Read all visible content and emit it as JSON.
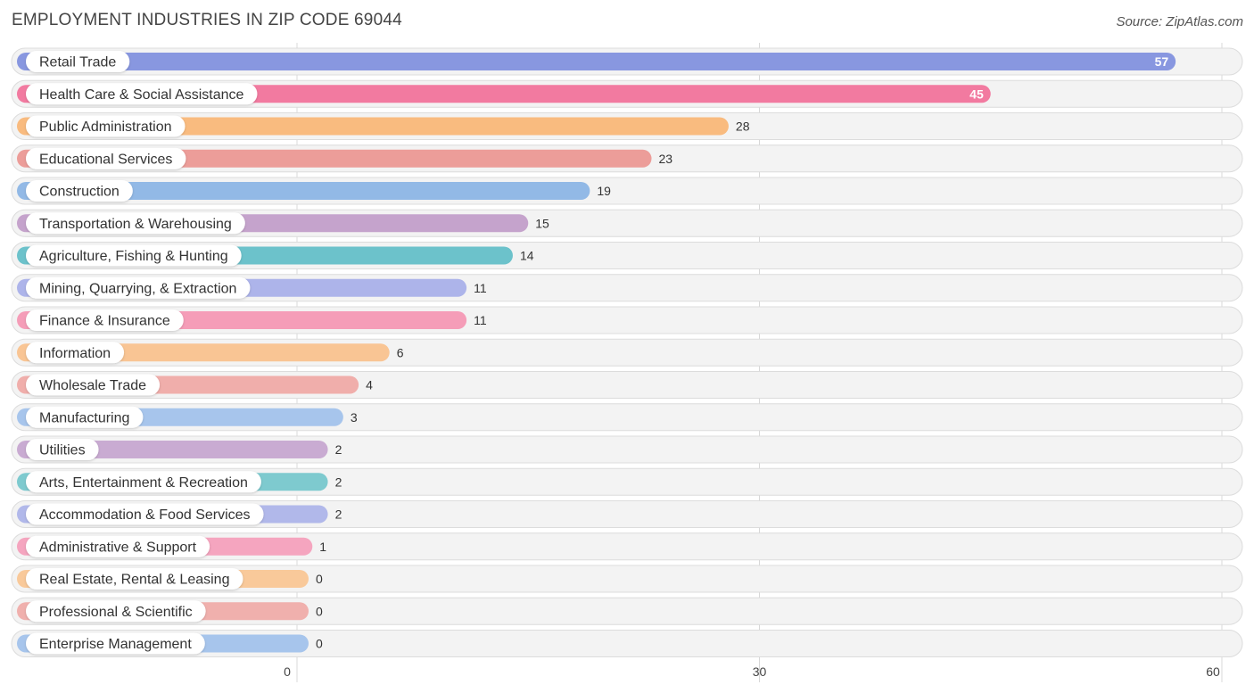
{
  "chart_data": {
    "type": "bar",
    "orientation": "horizontal",
    "title": "EMPLOYMENT INDUSTRIES IN ZIP CODE 69044",
    "source": "Source: ZipAtlas.com",
    "xlim": [
      0,
      60
    ],
    "xticks": [
      0,
      30,
      60
    ],
    "categories": [
      "Retail Trade",
      "Health Care & Social Assistance",
      "Public Administration",
      "Educational Services",
      "Construction",
      "Transportation & Warehousing",
      "Agriculture, Fishing & Hunting",
      "Mining, Quarrying, & Extraction",
      "Finance & Insurance",
      "Information",
      "Wholesale Trade",
      "Manufacturing",
      "Utilities",
      "Arts, Entertainment & Recreation",
      "Accommodation & Food Services",
      "Administrative & Support",
      "Real Estate, Rental & Leasing",
      "Professional & Scientific",
      "Enterprise Management"
    ],
    "values": [
      57,
      45,
      28,
      23,
      19,
      15,
      14,
      11,
      11,
      6,
      4,
      3,
      2,
      2,
      2,
      1,
      0,
      0,
      0
    ],
    "colors": [
      "#8897e0",
      "#f27aa0",
      "#f9bb7f",
      "#ec9d99",
      "#92b9e6",
      "#c5a3cc",
      "#6cc2cb",
      "#adb4ea",
      "#f59db8",
      "#f9c594",
      "#f0aeab",
      "#a7c5ec",
      "#c9abd2",
      "#7ecacf",
      "#b1b8ea",
      "#f5a5bf",
      "#f9c99a",
      "#f0b0ad",
      "#a7c5ec"
    ]
  }
}
